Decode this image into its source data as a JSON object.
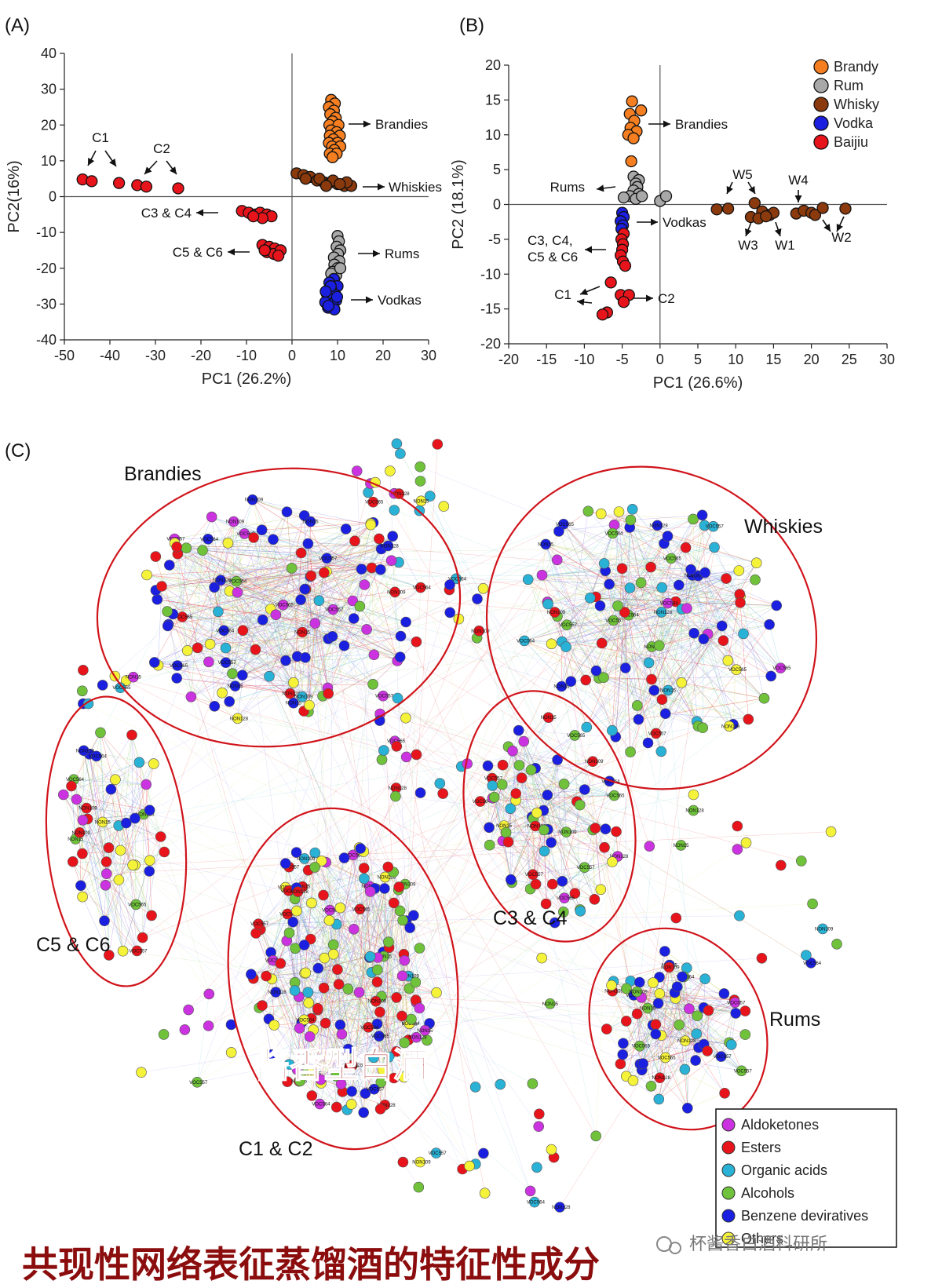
{
  "chart_data": [
    {
      "panel": "(A)",
      "type": "scatter",
      "xlabel": "PC1 (26.2%)",
      "ylabel": "PC2(16%)",
      "xlim": [
        -50,
        30
      ],
      "ylim": [
        -40,
        40
      ],
      "xticks": [
        -50,
        -40,
        -30,
        -20,
        -10,
        0,
        10,
        20,
        30
      ],
      "yticks": [
        -40,
        -30,
        -20,
        -10,
        0,
        10,
        20,
        30,
        40
      ],
      "series": [
        {
          "name": "Brandies",
          "color": "#f57f20",
          "points": [
            [
              8.6,
              27
            ],
            [
              9.4,
              26
            ],
            [
              8.1,
              25
            ],
            [
              9.2,
              24
            ],
            [
              8.4,
              23
            ],
            [
              9.6,
              22
            ],
            [
              8.9,
              21
            ],
            [
              8.2,
              20
            ],
            [
              10.2,
              20
            ],
            [
              8.6,
              18.5
            ],
            [
              9.8,
              18
            ],
            [
              8.3,
              17
            ],
            [
              10.5,
              17
            ],
            [
              9.1,
              16
            ],
            [
              8.1,
              15
            ],
            [
              10,
              15
            ],
            [
              8.8,
              14
            ],
            [
              10.6,
              14
            ],
            [
              9.3,
              13
            ],
            [
              8.3,
              12
            ],
            [
              9.8,
              12
            ],
            [
              8.9,
              11
            ]
          ]
        },
        {
          "name": "Whiskies",
          "color": "#8b3a0e",
          "points": [
            [
              1,
              6.5
            ],
            [
              2.5,
              6
            ],
            [
              4,
              5.5
            ],
            [
              5.5,
              4.5
            ],
            [
              7,
              4
            ],
            [
              8.5,
              4
            ],
            [
              10,
              3.5
            ],
            [
              11.5,
              3
            ],
            [
              13,
              3
            ],
            [
              3,
              5
            ],
            [
              6,
              5
            ],
            [
              9,
              4.5
            ],
            [
              12,
              4
            ],
            [
              7.5,
              3
            ],
            [
              10.5,
              3.5
            ]
          ]
        },
        {
          "name": "Rums",
          "color": "#a8a8a8",
          "points": [
            [
              10,
              -11
            ],
            [
              10.3,
              -12.5
            ],
            [
              9.8,
              -14
            ],
            [
              10.6,
              -15
            ],
            [
              10.1,
              -16
            ],
            [
              9.2,
              -17
            ],
            [
              10.4,
              -18
            ],
            [
              9.3,
              -19
            ],
            [
              10,
              -20
            ],
            [
              8.9,
              -21
            ],
            [
              9.7,
              -22
            ],
            [
              8.6,
              -21.5
            ],
            [
              10.6,
              -20
            ]
          ]
        },
        {
          "name": "Vodkas",
          "color": "#1a1fe0",
          "points": [
            [
              9.2,
              -23
            ],
            [
              8.2,
              -24
            ],
            [
              10,
              -25
            ],
            [
              8.6,
              -26
            ],
            [
              7.6,
              -27
            ],
            [
              9.6,
              -27.5
            ],
            [
              8.3,
              -28.5
            ],
            [
              9.7,
              -29
            ],
            [
              7.3,
              -29.5
            ],
            [
              8.9,
              -30
            ],
            [
              7.9,
              -31
            ],
            [
              9.3,
              -31.5
            ],
            [
              8.5,
              -25
            ],
            [
              7.4,
              -26.5
            ],
            [
              9.9,
              -28
            ],
            [
              8,
              -30.5
            ]
          ]
        },
        {
          "name": "C1",
          "color": "#e8141b",
          "points": [
            [
              -46,
              4.8
            ],
            [
              -44,
              4.3
            ],
            [
              -38,
              3.8
            ]
          ]
        },
        {
          "name": "C2",
          "color": "#e8141b",
          "points": [
            [
              -34,
              3.2
            ],
            [
              -32,
              2.8
            ],
            [
              -25,
              2.3
            ]
          ]
        },
        {
          "name": "C3 & C4",
          "color": "#e8141b",
          "points": [
            [
              -11,
              -4
            ],
            [
              -9.5,
              -4.5
            ],
            [
              -8,
              -5
            ],
            [
              -7,
              -4.5
            ],
            [
              -5.5,
              -5
            ],
            [
              -4.5,
              -5.5
            ],
            [
              -6.5,
              -6
            ],
            [
              -8.5,
              -5.5
            ]
          ]
        },
        {
          "name": "C5 & C6",
          "color": "#e8141b",
          "points": [
            [
              -6.5,
              -13.5
            ],
            [
              -5,
              -14
            ],
            [
              -3.8,
              -14.5
            ],
            [
              -5.5,
              -15.5
            ],
            [
              -4,
              -16
            ],
            [
              -2.5,
              -15
            ],
            [
              -3,
              -16.5
            ],
            [
              -6,
              -15
            ]
          ]
        }
      ],
      "annotations": [
        "C1",
        "C2",
        "Brandies",
        "Whiskies",
        "C3 & C4",
        "C5 & C6",
        "Rums",
        "Vodkas"
      ]
    },
    {
      "panel": "(B)",
      "type": "scatter",
      "xlabel": "PC1 (26.6%)",
      "ylabel": "PC2 (18.1%)",
      "xlim": [
        -20,
        30
      ],
      "ylim": [
        -20,
        20
      ],
      "xticks": [
        -20,
        -15,
        -10,
        -5,
        0,
        5,
        10,
        15,
        20,
        25,
        30
      ],
      "yticks": [
        -20,
        -15,
        -10,
        -5,
        0,
        5,
        10,
        15,
        20
      ],
      "legend": [
        {
          "label": "Brandy",
          "color": "#f57f20"
        },
        {
          "label": "Rum",
          "color": "#a8a8a8"
        },
        {
          "label": "Whisky",
          "color": "#8b3a0e"
        },
        {
          "label": "Vodka",
          "color": "#1a1fe0"
        },
        {
          "label": "Baijiu",
          "color": "#e8141b"
        }
      ],
      "series": [
        {
          "name": "Brandy",
          "color": "#f57f20",
          "points": [
            [
              -3.7,
              14.8
            ],
            [
              -2.5,
              13.5
            ],
            [
              -4,
              13
            ],
            [
              -3.4,
              12
            ],
            [
              -3.9,
              11
            ],
            [
              -3.1,
              10.5
            ],
            [
              -4.2,
              10
            ],
            [
              -3.5,
              9.5
            ],
            [
              -3.8,
              6.2
            ]
          ]
        },
        {
          "name": "Rum",
          "color": "#a8a8a8",
          "points": [
            [
              -3.5,
              4
            ],
            [
              -2.8,
              3.5
            ],
            [
              -3.2,
              3
            ],
            [
              -3,
              2.5
            ],
            [
              -3.5,
              2
            ],
            [
              -2.8,
              1.5
            ],
            [
              -4,
              1.2
            ],
            [
              -4.8,
              1
            ],
            [
              -3.2,
              0.8
            ],
            [
              -2.4,
              1.2
            ],
            [
              0,
              0.5
            ],
            [
              0.8,
              1.2
            ]
          ]
        },
        {
          "name": "Whisky",
          "color": "#8b3a0e",
          "points": [
            [
              7.5,
              -0.7
            ],
            [
              9,
              -0.6
            ],
            [
              12.5,
              0.2
            ],
            [
              13.5,
              -1
            ],
            [
              12,
              -1.8
            ],
            [
              14.5,
              -1.5
            ],
            [
              15,
              -1.2
            ],
            [
              13,
              -2
            ],
            [
              14,
              -1.7
            ],
            [
              18,
              -1.3
            ],
            [
              19,
              -0.9
            ],
            [
              20,
              -1.2
            ],
            [
              20.5,
              -1.5
            ],
            [
              21.5,
              -0.5
            ],
            [
              24.5,
              -0.6
            ]
          ]
        },
        {
          "name": "Vodka",
          "color": "#1a1fe0",
          "points": [
            [
              -5,
              -1.2
            ],
            [
              -4.8,
              -1.8
            ],
            [
              -5.2,
              -2.4
            ],
            [
              -4.9,
              -3
            ],
            [
              -5.1,
              -3.5
            ]
          ]
        },
        {
          "name": "Baijiu",
          "color": "#e8141b",
          "points": [
            [
              -4.8,
              -4.2
            ],
            [
              -5.1,
              -5
            ],
            [
              -4.9,
              -5.7
            ],
            [
              -5,
              -6.5
            ],
            [
              -5.2,
              -7.3
            ],
            [
              -4.9,
              -8.2
            ],
            [
              -4.6,
              -8.8
            ],
            [
              -6.5,
              -11.2
            ],
            [
              -5.2,
              -13
            ],
            [
              -4.1,
              -13
            ],
            [
              -4.8,
              -14
            ],
            [
              -7,
              -15.5
            ],
            [
              -7.6,
              -15.8
            ]
          ]
        }
      ],
      "annotations": [
        "Brandies",
        "Rums",
        "Vodkas",
        "C3, C4,",
        "C5 & C6",
        "C1",
        "C2",
        "W5",
        "W4",
        "W3",
        "W1",
        "W2"
      ]
    },
    {
      "panel": "(C)",
      "type": "network",
      "clusters": [
        "Brandies",
        "Whiskies",
        "C5 & C6",
        "C3 & C4",
        "C1 & C2",
        "Rums"
      ],
      "legend": [
        {
          "label": "Aldoketones",
          "color": "#cc33e0"
        },
        {
          "label": "Esters",
          "color": "#e8141b"
        },
        {
          "label": "Organic acids",
          "color": "#2ab2d6"
        },
        {
          "label": "Alcohols",
          "color": "#6fc23a"
        },
        {
          "label": "Benzene deviratives",
          "color": "#1a1fe0"
        },
        {
          "label": "Others",
          "color": "#f5f23a"
        }
      ],
      "sample_node_labels": [
        "VOC564",
        "VOC400",
        "VOC322",
        "VOC375",
        "NON162",
        "NON109",
        "NON152",
        "NON148",
        "NON113",
        "VOC645",
        "VOC557",
        "VOC585",
        "VOC628",
        "VOC643",
        "VOC599",
        "VOC565",
        "VOC560",
        "VOC552",
        "VOC593",
        "NON40",
        "NON15",
        "VOC624",
        "VOC608",
        "VOC507",
        "VOC550",
        "NON128",
        "VOC425",
        "VOC588",
        "VOC487",
        "NON154"
      ]
    }
  ],
  "overlays": {
    "watermark": "酱香型白酒",
    "caption": "共现性网络表征蒸馏酒的特征性成分",
    "wechat": "杯酱香白酒科研所"
  }
}
